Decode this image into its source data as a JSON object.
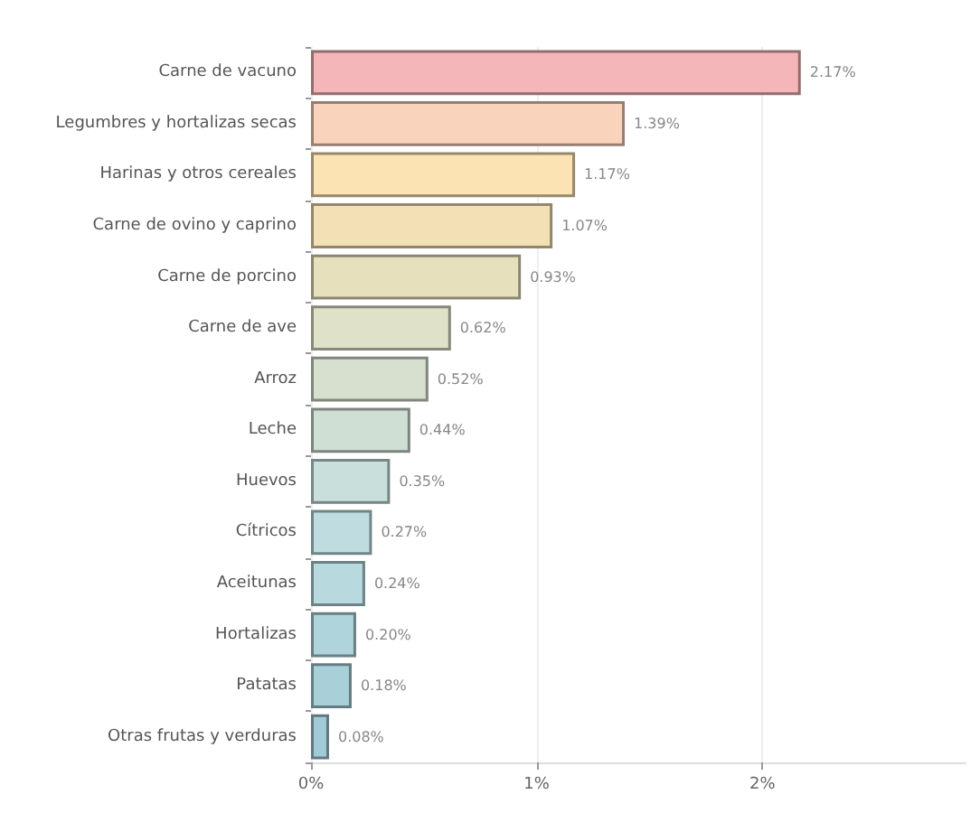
{
  "chart_data": {
    "type": "bar",
    "orientation": "horizontal",
    "categories": [
      "Carne de vacuno",
      "Legumbres y hortalizas secas",
      "Harinas y otros cereales",
      "Carne de ovino y caprino",
      "Carne de porcino",
      "Carne de ave",
      "Arroz",
      "Leche",
      "Huevos",
      "Cítricos",
      "Aceitunas",
      "Hortalizas",
      "Patatas",
      "Otras frutas y verduras"
    ],
    "values": [
      2.17,
      1.39,
      1.17,
      1.07,
      0.93,
      0.62,
      0.52,
      0.44,
      0.35,
      0.27,
      0.24,
      0.2,
      0.18,
      0.08
    ],
    "value_labels": [
      "2.17%",
      "1.39%",
      "1.17%",
      "1.07%",
      "0.93%",
      "0.62%",
      "0.52%",
      "0.44%",
      "0.35%",
      "0.27%",
      "0.24%",
      "0.20%",
      "0.18%",
      "0.08%"
    ],
    "colors": [
      "#f4b6b8",
      "#fad3bd",
      "#fbe3b4",
      "#f3e1b5",
      "#e6e0bc",
      "#dfe2c9",
      "#d7e0cf",
      "#cfdfd4",
      "#c8dfdc",
      "#bfdde0",
      "#b8d9dd",
      "#b0d4db",
      "#a9d0d9",
      "#a0cad6"
    ],
    "xlim": [
      0,
      2.9
    ],
    "xticks": [
      {
        "value": 0,
        "label": "0%"
      },
      {
        "value": 1,
        "label": "1%"
      },
      {
        "value": 2,
        "label": "2%"
      }
    ],
    "grid": "x"
  }
}
